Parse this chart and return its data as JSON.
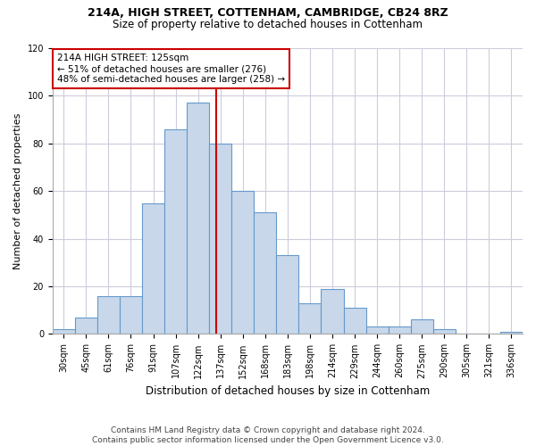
{
  "title1": "214A, HIGH STREET, COTTENHAM, CAMBRIDGE, CB24 8RZ",
  "title2": "Size of property relative to detached houses in Cottenham",
  "xlabel": "Distribution of detached houses by size in Cottenham",
  "ylabel": "Number of detached properties",
  "categories": [
    "30sqm",
    "45sqm",
    "61sqm",
    "76sqm",
    "91sqm",
    "107sqm",
    "122sqm",
    "137sqm",
    "152sqm",
    "168sqm",
    "183sqm",
    "198sqm",
    "214sqm",
    "229sqm",
    "244sqm",
    "260sqm",
    "275sqm",
    "290sqm",
    "305sqm",
    "321sqm",
    "336sqm"
  ],
  "values": [
    2,
    7,
    16,
    16,
    55,
    86,
    97,
    80,
    60,
    51,
    33,
    13,
    19,
    11,
    3,
    3,
    6,
    2,
    0,
    0,
    1
  ],
  "bar_color": "#c8d8ea",
  "bar_edge_color": "#6699cc",
  "bar_edge_width": 0.8,
  "vline_x": 6.82,
  "vline_color": "#cc0000",
  "annotation_text": "214A HIGH STREET: 125sqm\n← 51% of detached houses are smaller (276)\n48% of semi-detached houses are larger (258) →",
  "annotation_box_color": "#ffffff",
  "annotation_box_edge": "#cc0000",
  "ylim": [
    0,
    120
  ],
  "yticks": [
    0,
    20,
    40,
    60,
    80,
    100,
    120
  ],
  "grid_color": "#ccccdd",
  "footnote": "Contains HM Land Registry data © Crown copyright and database right 2024.\nContains public sector information licensed under the Open Government Licence v3.0.",
  "bg_color": "#ffffff",
  "plot_bg_color": "#ffffff",
  "title1_fontsize": 9,
  "title2_fontsize": 8.5,
  "xlabel_fontsize": 8.5,
  "ylabel_fontsize": 8,
  "tick_fontsize": 7,
  "footnote_fontsize": 6.5
}
